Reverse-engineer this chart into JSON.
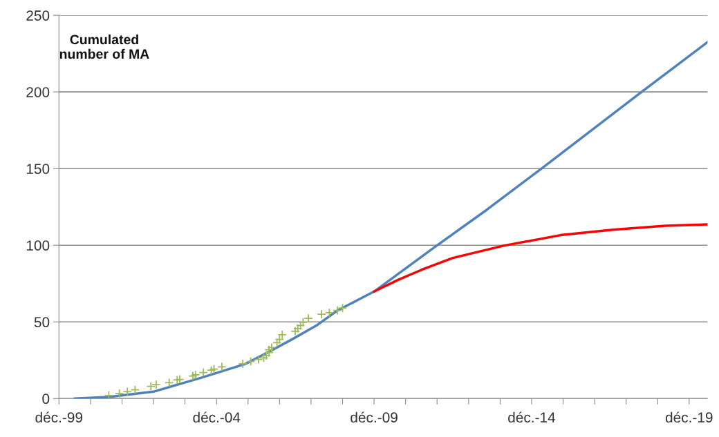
{
  "chart_data": {
    "type": "line",
    "annotations": [
      "Cumulated\nnumber of MA"
    ],
    "series": [
      {
        "color": "#4f81bd",
        "x": [
          "2000-06",
          "2001-07",
          "2002-12",
          "2004-06",
          "2005-11",
          "2006-08",
          "2007-05",
          "2008-02",
          "2008-10",
          "2009-12",
          "2011-11",
          "2013-07",
          "2015-04",
          "2018-06",
          "2020-07"
        ],
        "values": [
          0,
          1,
          4.5,
          13.5,
          22.6,
          30.5,
          38.8,
          47.6,
          57.4,
          69.8,
          98.7,
          123.2,
          150.3,
          200.1,
          232.5
        ]
      },
      {
        "color": "#ff0000",
        "x": [
          "2009-12",
          "2010-09",
          "2011-06",
          "2012-06",
          "2014-01",
          "2015-11",
          "2017-07",
          "2019-03",
          "2020-07"
        ],
        "values": [
          69.8,
          77.3,
          83.9,
          91.7,
          99.6,
          106.6,
          110.1,
          112.7,
          113.6
        ]
      },
      {
        "type": "scatter",
        "color": "#9bbb59",
        "marker": "cross",
        "x": [
          "2001-07",
          "2001-11",
          "2002-02",
          "2002-05",
          "2002-11",
          "2003-01",
          "2003-06",
          "2003-09",
          "2003-10",
          "2004-03",
          "2004-04",
          "2004-07",
          "2004-10",
          "2004-11",
          "2005-02",
          "2005-10",
          "2006-01",
          "2006-04",
          "2006-06",
          "2006-07",
          "2006-08",
          "2006-08",
          "2006-09",
          "2006-11",
          "2006-12",
          "2007-01",
          "2007-06",
          "2007-07",
          "2007-08",
          "2007-09",
          "2007-11",
          "2008-04",
          "2008-07",
          "2008-10",
          "2008-12"
        ],
        "values": [
          2.0,
          3.3,
          4.5,
          5.7,
          8.0,
          9.1,
          10.3,
          12.1,
          12.5,
          14.7,
          15.5,
          17.0,
          18.5,
          19.2,
          20.7,
          22.7,
          24.2,
          25.5,
          26.5,
          28.0,
          30.0,
          31.8,
          33.3,
          36.4,
          38.6,
          41.6,
          43.9,
          45.7,
          47.7,
          49.7,
          52.3,
          55.0,
          56.0,
          57.5,
          59.1
        ]
      }
    ],
    "xlim": [
      "1999-12",
      "2020-07"
    ],
    "xticks": [
      {
        "value": "1999-12",
        "label": "déc.-99"
      },
      {
        "value": "2000-12",
        "label": null
      },
      {
        "value": "2001-12",
        "label": null
      },
      {
        "value": "2002-12",
        "label": null
      },
      {
        "value": "2003-12",
        "label": null
      },
      {
        "value": "2004-12",
        "label": "déc.-04"
      },
      {
        "value": "2005-12",
        "label": null
      },
      {
        "value": "2006-12",
        "label": null
      },
      {
        "value": "2007-12",
        "label": null
      },
      {
        "value": "2008-12",
        "label": null
      },
      {
        "value": "2009-12",
        "label": "déc.-09"
      },
      {
        "value": "2010-12",
        "label": null
      },
      {
        "value": "2011-12",
        "label": null
      },
      {
        "value": "2012-12",
        "label": null
      },
      {
        "value": "2013-12",
        "label": null
      },
      {
        "value": "2014-12",
        "label": "déc.-14"
      },
      {
        "value": "2015-12",
        "label": null
      },
      {
        "value": "2016-12",
        "label": null
      },
      {
        "value": "2017-12",
        "label": null
      },
      {
        "value": "2018-12",
        "label": null
      },
      {
        "value": "2019-12",
        "label": "déc.-19"
      }
    ],
    "ylim": [
      0,
      250
    ],
    "yticks": [
      0,
      50,
      100,
      150,
      200,
      250
    ],
    "grid": "y"
  }
}
